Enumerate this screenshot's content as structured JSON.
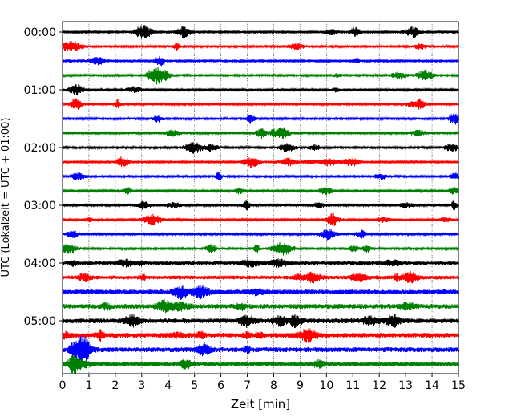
{
  "chart_data": {
    "type": "line",
    "title": "",
    "xlabel": "Zeit  [min]",
    "ylabel": "UTC (Lokalzeit = UTC + 01:00)",
    "xlim": [
      0,
      15
    ],
    "x_ticks": [
      "0",
      "1",
      "2",
      "3",
      "4",
      "5",
      "6",
      "7",
      "8",
      "9",
      "10",
      "11",
      "12",
      "13",
      "14",
      "15"
    ],
    "y_tick_labels": [
      "00:00",
      "01:00",
      "02:00",
      "03:00",
      "04:00",
      "05:00"
    ],
    "rows_per_hour": 4,
    "row_minutes": 15,
    "trace_count": 24,
    "trace_colors": [
      "#000000",
      "#ff0000",
      "#0000ff",
      "#008000"
    ],
    "grid": {
      "x": true,
      "style": "dotted"
    },
    "legend": "none",
    "trace_start_times": [
      "00:00",
      "00:15",
      "00:30",
      "00:45",
      "01:00",
      "01:15",
      "01:30",
      "01:45",
      "02:00",
      "02:15",
      "02:30",
      "02:45",
      "03:00",
      "03:15",
      "03:30",
      "03:45",
      "04:00",
      "04:15",
      "04:30",
      "04:45",
      "05:00",
      "05:15",
      "05:30",
      "05:45"
    ]
  }
}
